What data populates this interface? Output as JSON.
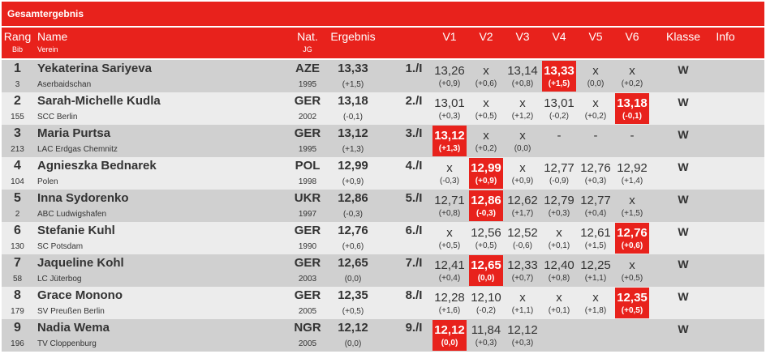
{
  "title": "Gesamtergebnis",
  "headers": {
    "rang": "Rang",
    "bib": "Bib",
    "name": "Name",
    "verein": "Verein",
    "nat": "Nat.",
    "jg": "JG",
    "ergebnis": "Ergebnis",
    "v1": "V1",
    "v2": "V2",
    "v3": "V3",
    "v4": "V4",
    "v5": "V5",
    "v6": "V6",
    "klasse": "Klasse",
    "info": "Info"
  },
  "colors": {
    "accent": "#e8221c",
    "row_odd": "#d0d0d0",
    "row_even": "#ececec"
  },
  "results": [
    {
      "rank": "1",
      "bib": "3",
      "name": "Yekaterina Sariyeva",
      "club": "Aserbaidschan",
      "nat": "AZE",
      "jg": "1995",
      "result": "13,33",
      "wind": "(+1,5)",
      "place": "1./I",
      "attempts": [
        {
          "v": "13,26",
          "w": "(+0,9)",
          "best": false
        },
        {
          "v": "x",
          "w": "(+0,6)",
          "best": false
        },
        {
          "v": "13,14",
          "w": "(+0,8)",
          "best": false
        },
        {
          "v": "13,33",
          "w": "(+1,5)",
          "best": true
        },
        {
          "v": "x",
          "w": "(0,0)",
          "best": false
        },
        {
          "v": "x",
          "w": "(+0,2)",
          "best": false
        }
      ],
      "klasse": "W"
    },
    {
      "rank": "2",
      "bib": "155",
      "name": "Sarah-Michelle Kudla",
      "club": "SCC Berlin",
      "nat": "GER",
      "jg": "2002",
      "result": "13,18",
      "wind": "(-0,1)",
      "place": "2./I",
      "attempts": [
        {
          "v": "13,01",
          "w": "(+0,3)",
          "best": false
        },
        {
          "v": "x",
          "w": "(+0,5)",
          "best": false
        },
        {
          "v": "x",
          "w": "(+1,2)",
          "best": false
        },
        {
          "v": "13,01",
          "w": "(-0,2)",
          "best": false
        },
        {
          "v": "x",
          "w": "(+0,2)",
          "best": false
        },
        {
          "v": "13,18",
          "w": "(-0,1)",
          "best": true
        }
      ],
      "klasse": "W"
    },
    {
      "rank": "3",
      "bib": "213",
      "name": "Maria Purtsa",
      "club": "LAC Erdgas Chemnitz",
      "nat": "GER",
      "jg": "1995",
      "result": "13,12",
      "wind": "(+1,3)",
      "place": "3./I",
      "attempts": [
        {
          "v": "13,12",
          "w": "(+1,3)",
          "best": true
        },
        {
          "v": "x",
          "w": "(+0,2)",
          "best": false
        },
        {
          "v": "x",
          "w": "(0,0)",
          "best": false
        },
        {
          "v": "-",
          "w": "",
          "best": false
        },
        {
          "v": "-",
          "w": "",
          "best": false
        },
        {
          "v": "-",
          "w": "",
          "best": false
        }
      ],
      "klasse": "W"
    },
    {
      "rank": "4",
      "bib": "104",
      "name": "Agnieszka Bednarek",
      "club": "Polen",
      "nat": "POL",
      "jg": "1998",
      "result": "12,99",
      "wind": "(+0,9)",
      "place": "4./I",
      "attempts": [
        {
          "v": "x",
          "w": "(-0,3)",
          "best": false
        },
        {
          "v": "12,99",
          "w": "(+0,9)",
          "best": true
        },
        {
          "v": "x",
          "w": "(+0,9)",
          "best": false
        },
        {
          "v": "12,77",
          "w": "(-0,9)",
          "best": false
        },
        {
          "v": "12,76",
          "w": "(+0,3)",
          "best": false
        },
        {
          "v": "12,92",
          "w": "(+1,4)",
          "best": false
        }
      ],
      "klasse": "W"
    },
    {
      "rank": "5",
      "bib": "2",
      "name": "Inna Sydorenko",
      "club": "ABC Ludwigshafen",
      "nat": "UKR",
      "jg": "1997",
      "result": "12,86",
      "wind": "(-0,3)",
      "place": "5./I",
      "attempts": [
        {
          "v": "12,71",
          "w": "(+0,8)",
          "best": false
        },
        {
          "v": "12,86",
          "w": "(-0,3)",
          "best": true
        },
        {
          "v": "12,62",
          "w": "(+1,7)",
          "best": false
        },
        {
          "v": "12,79",
          "w": "(+0,3)",
          "best": false
        },
        {
          "v": "12,77",
          "w": "(+0,4)",
          "best": false
        },
        {
          "v": "x",
          "w": "(+1,5)",
          "best": false
        }
      ],
      "klasse": "W"
    },
    {
      "rank": "6",
      "bib": "130",
      "name": "Stefanie Kuhl",
      "club": "SC Potsdam",
      "nat": "GER",
      "jg": "1990",
      "result": "12,76",
      "wind": "(+0,6)",
      "place": "6./I",
      "attempts": [
        {
          "v": "x",
          "w": "(+0,5)",
          "best": false
        },
        {
          "v": "12,56",
          "w": "(+0,5)",
          "best": false
        },
        {
          "v": "12,52",
          "w": "(-0,6)",
          "best": false
        },
        {
          "v": "x",
          "w": "(+0,1)",
          "best": false
        },
        {
          "v": "12,61",
          "w": "(+1,5)",
          "best": false
        },
        {
          "v": "12,76",
          "w": "(+0,6)",
          "best": true
        }
      ],
      "klasse": "W"
    },
    {
      "rank": "7",
      "bib": "58",
      "name": "Jaqueline Kohl",
      "club": "LC Jüterbog",
      "nat": "GER",
      "jg": "2003",
      "result": "12,65",
      "wind": "(0,0)",
      "place": "7./I",
      "attempts": [
        {
          "v": "12,41",
          "w": "(+0,4)",
          "best": false
        },
        {
          "v": "12,65",
          "w": "(0,0)",
          "best": true
        },
        {
          "v": "12,33",
          "w": "(+0,7)",
          "best": false
        },
        {
          "v": "12,40",
          "w": "(+0,8)",
          "best": false
        },
        {
          "v": "12,25",
          "w": "(+1,1)",
          "best": false
        },
        {
          "v": "x",
          "w": "(+0,5)",
          "best": false
        }
      ],
      "klasse": "W"
    },
    {
      "rank": "8",
      "bib": "179",
      "name": "Grace Monono",
      "club": "SV Preußen Berlin",
      "nat": "GER",
      "jg": "2005",
      "result": "12,35",
      "wind": "(+0,5)",
      "place": "8./I",
      "attempts": [
        {
          "v": "12,28",
          "w": "(+1,6)",
          "best": false
        },
        {
          "v": "12,10",
          "w": "(-0,2)",
          "best": false
        },
        {
          "v": "x",
          "w": "(+1,1)",
          "best": false
        },
        {
          "v": "x",
          "w": "(+0,1)",
          "best": false
        },
        {
          "v": "x",
          "w": "(+1,8)",
          "best": false
        },
        {
          "v": "12,35",
          "w": "(+0,5)",
          "best": true
        }
      ],
      "klasse": "W"
    },
    {
      "rank": "9",
      "bib": "196",
      "name": "Nadia Wema",
      "club": "TV Cloppenburg",
      "nat": "NGR",
      "jg": "2005",
      "result": "12,12",
      "wind": "(0,0)",
      "place": "9./I",
      "attempts": [
        {
          "v": "12,12",
          "w": "(0,0)",
          "best": true
        },
        {
          "v": "11,84",
          "w": "(+0,3)",
          "best": false
        },
        {
          "v": "12,12",
          "w": "(+0,3)",
          "best": false
        },
        {
          "v": "",
          "w": "",
          "best": false
        },
        {
          "v": "",
          "w": "",
          "best": false
        },
        {
          "v": "",
          "w": "",
          "best": false
        }
      ],
      "klasse": "W"
    }
  ]
}
